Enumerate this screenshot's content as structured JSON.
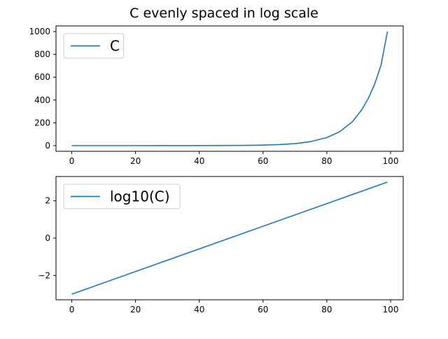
{
  "figure": {
    "title": "C evenly spaced in log scale"
  },
  "colors": {
    "line": "#1f77b4",
    "axis": "#000000",
    "legend_border": "#cccccc"
  },
  "chart_data": [
    {
      "type": "line",
      "title": "",
      "xlabel": "",
      "ylabel": "",
      "xlim": [
        -4.95,
        103.95
      ],
      "ylim": [
        -49.95,
        1049.95
      ],
      "x_ticks": [
        0,
        20,
        40,
        60,
        80,
        100
      ],
      "x_tick_labels": [
        "0",
        "20",
        "40",
        "60",
        "80",
        "100"
      ],
      "y_ticks": [
        0,
        200,
        400,
        600,
        800,
        1000
      ],
      "y_tick_labels": [
        "0",
        "200",
        "400",
        "600",
        "800",
        "1000"
      ],
      "grid": false,
      "legend": "upper-left",
      "series": [
        {
          "name": "C",
          "x": [
            0,
            10,
            20,
            30,
            40,
            50,
            55,
            60,
            65,
            70,
            75,
            80,
            84,
            88,
            91,
            93,
            95,
            97,
            99
          ],
          "y": [
            0.001,
            0.004,
            0.0162,
            0.0658,
            0.2656,
            1.0723,
            2.1544,
            4.3288,
            8.6975,
            17.475,
            35.112,
            70.548,
            121.33,
            208.66,
            316.23,
            413.18,
            539.85,
            705.35,
            1000
          ]
        }
      ]
    },
    {
      "type": "line",
      "title": "",
      "xlabel": "",
      "ylabel": "",
      "xlim": [
        -4.95,
        103.95
      ],
      "ylim": [
        -3.3,
        3.3
      ],
      "x_ticks": [
        0,
        20,
        40,
        60,
        80,
        100
      ],
      "x_tick_labels": [
        "0",
        "20",
        "40",
        "60",
        "80",
        "100"
      ],
      "y_ticks": [
        -2,
        0,
        2
      ],
      "y_tick_labels": [
        "−2",
        "0",
        "2"
      ],
      "grid": false,
      "legend": "upper-left",
      "series": [
        {
          "name": "log10(C)",
          "x": [
            0,
            99
          ],
          "y": [
            -3,
            3
          ]
        }
      ]
    }
  ]
}
